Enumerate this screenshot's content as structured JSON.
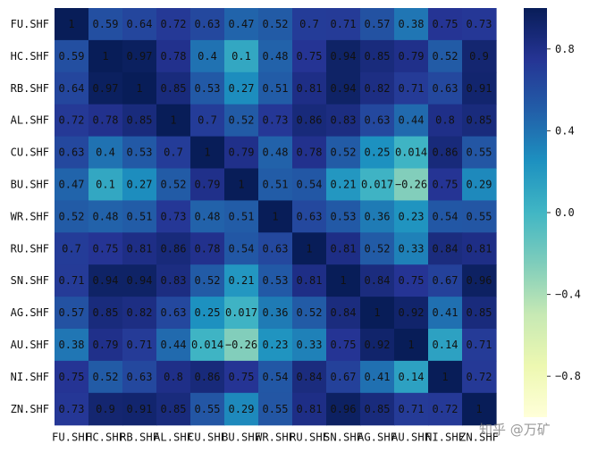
{
  "chart_data": {
    "type": "heatmap",
    "title": "",
    "xlabel": "",
    "ylabel": "",
    "labels": [
      "FU.SHF",
      "HC.SHF",
      "RB.SHF",
      "AL.SHF",
      "CU.SHF",
      "BU.SHF",
      "WR.SHF",
      "RU.SHF",
      "SN.SHF",
      "AG.SHF",
      "AU.SHF",
      "NI.SHF",
      "ZN.SHF"
    ],
    "matrix": [
      [
        1,
        0.59,
        0.64,
        0.72,
        0.63,
        0.47,
        0.52,
        0.7,
        0.71,
        0.57,
        0.38,
        0.75,
        0.73
      ],
      [
        0.59,
        1,
        0.97,
        0.78,
        0.4,
        0.1,
        0.48,
        0.75,
        0.94,
        0.85,
        0.79,
        0.52,
        0.9
      ],
      [
        0.64,
        0.97,
        1,
        0.85,
        0.53,
        0.27,
        0.51,
        0.81,
        0.94,
        0.82,
        0.71,
        0.63,
        0.91
      ],
      [
        0.72,
        0.78,
        0.85,
        1,
        0.7,
        0.52,
        0.73,
        0.86,
        0.83,
        0.63,
        0.44,
        0.8,
        0.85
      ],
      [
        0.63,
        0.4,
        0.53,
        0.7,
        1,
        0.79,
        0.48,
        0.78,
        0.52,
        0.25,
        0.014,
        0.86,
        0.55
      ],
      [
        0.47,
        0.1,
        0.27,
        0.52,
        0.79,
        1,
        0.51,
        0.54,
        0.21,
        0.017,
        -0.26,
        0.75,
        0.29
      ],
      [
        0.52,
        0.48,
        0.51,
        0.73,
        0.48,
        0.51,
        1,
        0.63,
        0.53,
        0.36,
        0.23,
        0.54,
        0.55
      ],
      [
        0.7,
        0.75,
        0.81,
        0.86,
        0.78,
        0.54,
        0.63,
        1,
        0.81,
        0.52,
        0.33,
        0.84,
        0.81
      ],
      [
        0.71,
        0.94,
        0.94,
        0.83,
        0.52,
        0.21,
        0.53,
        0.81,
        1,
        0.84,
        0.75,
        0.67,
        0.96
      ],
      [
        0.57,
        0.85,
        0.82,
        0.63,
        0.25,
        0.017,
        0.36,
        0.52,
        0.84,
        1,
        0.92,
        0.41,
        0.85
      ],
      [
        0.38,
        0.79,
        0.71,
        0.44,
        0.014,
        -0.26,
        0.23,
        0.33,
        0.75,
        0.92,
        1,
        0.14,
        0.71
      ],
      [
        0.75,
        0.52,
        0.63,
        0.8,
        0.86,
        0.75,
        0.54,
        0.84,
        0.67,
        0.41,
        0.14,
        1,
        0.72
      ],
      [
        0.73,
        0.9,
        0.91,
        0.85,
        0.55,
        0.29,
        0.55,
        0.81,
        0.96,
        0.85,
        0.71,
        0.72,
        1
      ]
    ],
    "vmin": -1,
    "vmax": 1,
    "colormap": "YlGnBu",
    "colorbar_ticks": [
      0.8,
      0.4,
      0.0,
      -0.4,
      -0.8
    ],
    "colorbar_tick_labels": [
      "0.8",
      "0.4",
      "0.0",
      "−0.4",
      "−0.8"
    ],
    "grid": false,
    "legend": "colorbar-right"
  },
  "watermark": "知乎 @万矿"
}
